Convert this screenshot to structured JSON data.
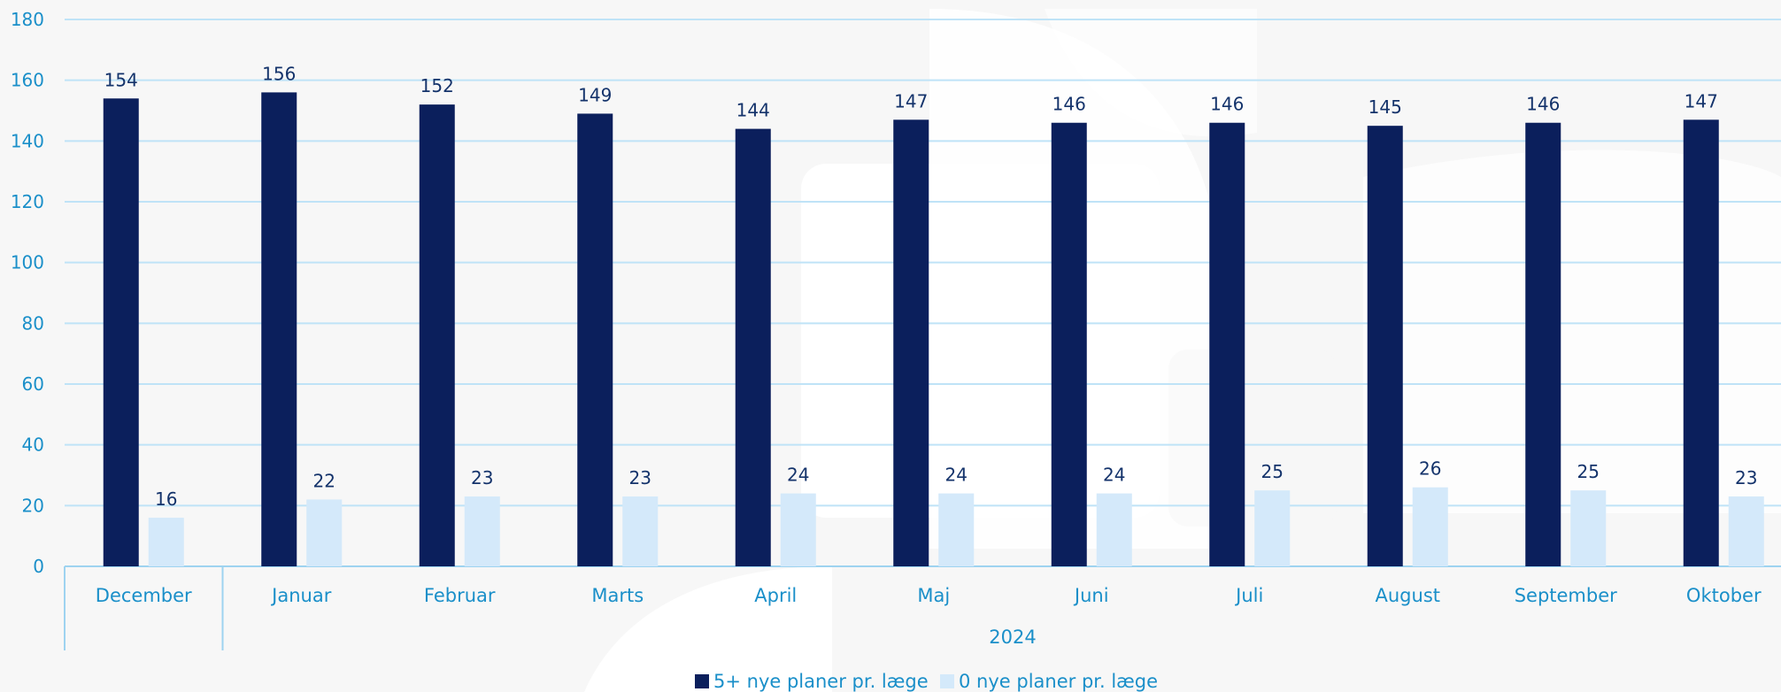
{
  "chart_data": {
    "type": "bar",
    "categories": [
      "December",
      "Januar",
      "Februar",
      "Marts",
      "April",
      "Maj",
      "Juni",
      "Juli",
      "August",
      "September",
      "Oktober"
    ],
    "category_groups": [
      {
        "label": "",
        "categories": [
          "December"
        ]
      },
      {
        "label": "2024",
        "categories": [
          "Januar",
          "Februar",
          "Marts",
          "April",
          "Maj",
          "Juni",
          "Juli",
          "August",
          "September",
          "Oktober"
        ]
      }
    ],
    "series": [
      {
        "name": "5+ nye planer pr. læge",
        "values": [
          154,
          156,
          152,
          149,
          144,
          147,
          146,
          146,
          145,
          146,
          147
        ],
        "color": "#0b1f5c"
      },
      {
        "name": "0 nye planer pr. læge",
        "values": [
          16,
          22,
          23,
          23,
          24,
          24,
          24,
          25,
          26,
          25,
          23
        ],
        "color": "#d4e9fa"
      }
    ],
    "ylim": [
      0,
      180
    ],
    "yticks": [
      0,
      20,
      40,
      60,
      80,
      100,
      120,
      140,
      160,
      180
    ],
    "grid": true,
    "data_labels": true,
    "legend_position": "bottom-center",
    "title": "",
    "xlabel": "",
    "ylabel": ""
  },
  "colors": {
    "background": "#f7f7f7",
    "gridline": "#bfe3f7",
    "axis": "#9ed3f0",
    "text": "#1a8fc9",
    "data_label": "#14336b",
    "watermark": "#ffffff"
  }
}
